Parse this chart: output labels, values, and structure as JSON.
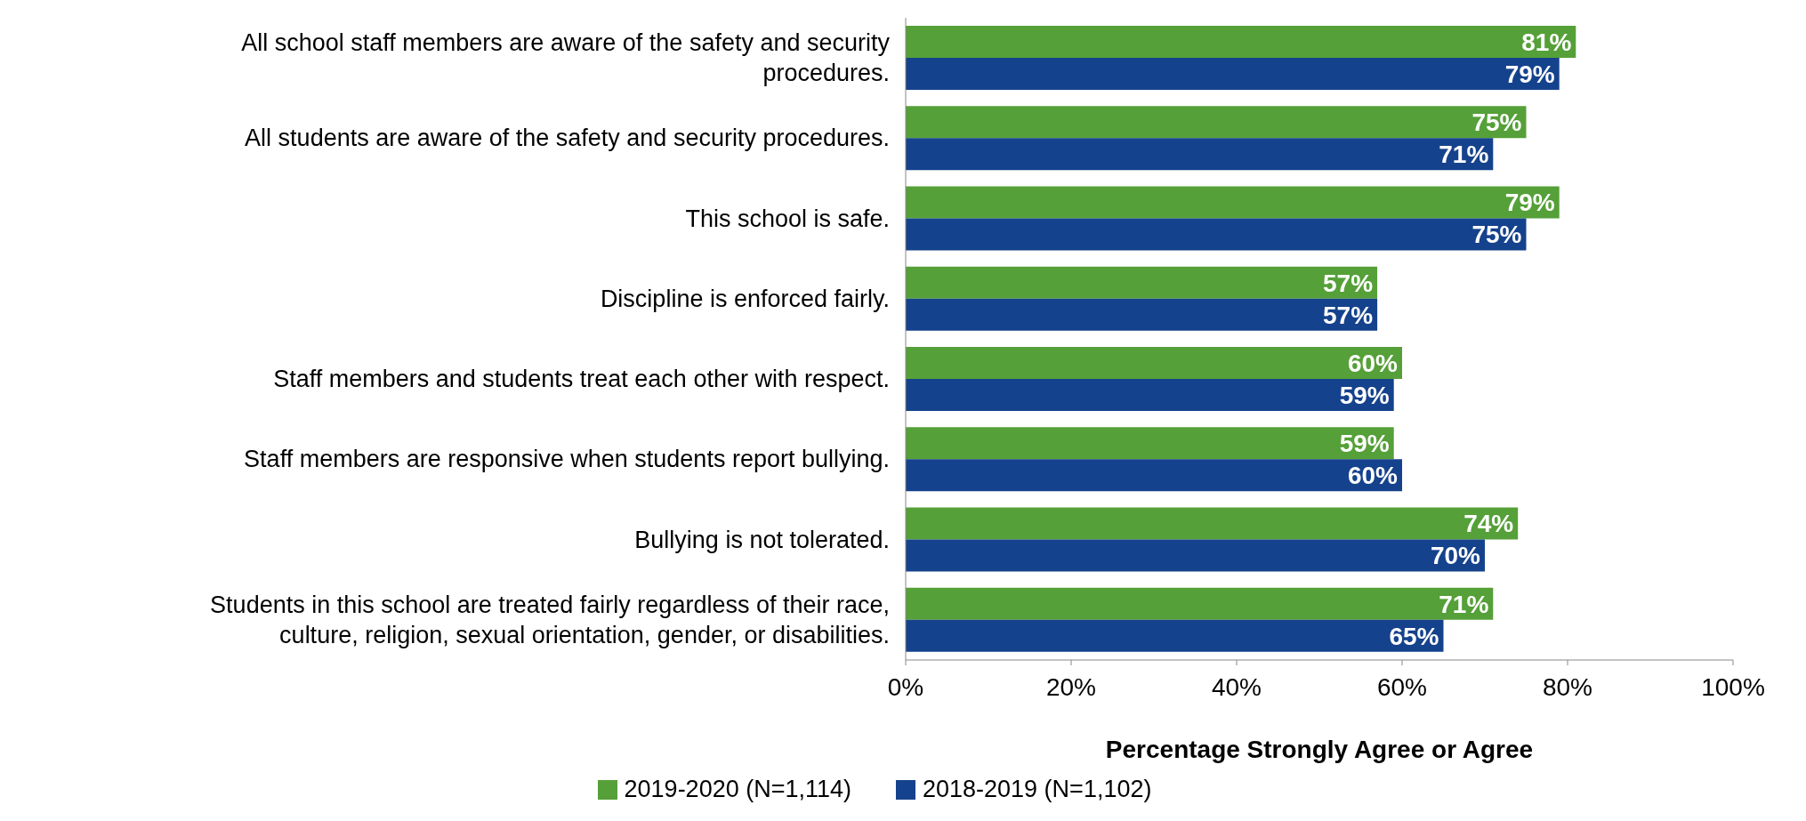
{
  "chart_data": {
    "type": "bar",
    "orientation": "horizontal",
    "xlabel": "Percentage Strongly Agree or Agree",
    "categories": [
      "All school staff members are aware of the safety and security procedures.",
      "All students are aware of the safety and security procedures.",
      "This school is safe.",
      "Discipline is enforced fairly.",
      "Staff members and students treat each other with respect.",
      "Staff members are responsive when students report bullying.",
      "Bullying is not tolerated.",
      "Students in this school are treated fairly regardless of their race, culture, religion, sexual orientation, gender, or disabilities."
    ],
    "series": [
      {
        "name": "2019-2020 (N=1,114)",
        "color": "#55a038",
        "values": [
          81,
          75,
          79,
          57,
          60,
          59,
          74,
          71
        ],
        "value_labels": [
          "81%",
          "75%",
          "79%",
          "57%",
          "60%",
          "59%",
          "74%",
          "71%"
        ]
      },
      {
        "name": "2018-2019 (N=1,102)",
        "color": "#15428c",
        "values": [
          79,
          71,
          75,
          57,
          59,
          60,
          70,
          65
        ],
        "value_labels": [
          "79%",
          "71%",
          "75%",
          "57%",
          "59%",
          "60%",
          "70%",
          "65%"
        ]
      }
    ],
    "xlim": [
      0,
      100
    ],
    "xticks": [
      {
        "value": 0,
        "label": "0%"
      },
      {
        "value": 20,
        "label": "20%"
      },
      {
        "value": 40,
        "label": "40%"
      },
      {
        "value": 60,
        "label": "60%"
      },
      {
        "value": 80,
        "label": "80%"
      },
      {
        "value": 100,
        "label": "100%"
      }
    ],
    "grid": false,
    "legend": "bottom"
  }
}
